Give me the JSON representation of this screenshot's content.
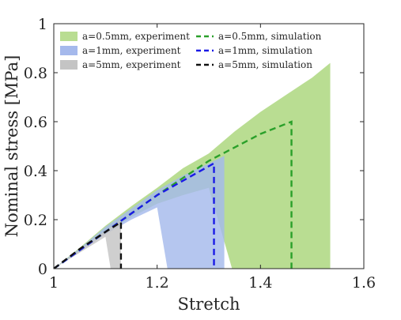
{
  "chart_data": {
    "type": "area",
    "title": "",
    "xlabel": "Stretch",
    "ylabel": "Nominal stress [MPa]",
    "xlim": [
      1,
      1.6
    ],
    "ylim": [
      0,
      1
    ],
    "xticks": [
      "1",
      "1.2",
      "1.4",
      "1.6"
    ],
    "yticks": [
      "0",
      "0.2",
      "0.4",
      "0.6",
      "0.8",
      "1"
    ],
    "grid": false,
    "legend_position": "top-left",
    "series": [
      {
        "name": "a=0.5mm, experiment",
        "kind": "band",
        "color": "#b9dd92",
        "x": [
          1.0,
          1.05,
          1.1,
          1.15,
          1.2,
          1.25,
          1.3,
          1.35,
          1.4,
          1.45,
          1.5,
          1.535
        ],
        "upper": [
          0,
          0.085,
          0.175,
          0.255,
          0.33,
          0.41,
          0.47,
          0.56,
          0.64,
          0.71,
          0.78,
          0.84
        ],
        "lower": [
          0,
          0.075,
          0.148,
          0.21,
          0.265,
          0.3,
          0.33,
          0.37,
          0.42,
          0.49,
          0.56,
          0.6
        ],
        "drop_x": [
          1.345,
          1.535
        ]
      },
      {
        "name": "a=1mm, experiment",
        "kind": "band",
        "color": "#a5b9ec",
        "x": [
          1.0,
          1.05,
          1.1,
          1.15,
          1.2,
          1.25,
          1.3,
          1.33
        ],
        "upper": [
          0,
          0.082,
          0.17,
          0.245,
          0.32,
          0.38,
          0.43,
          0.46
        ],
        "lower": [
          0,
          0.07,
          0.14,
          0.2,
          0.25,
          0.28,
          0.32,
          0.34
        ],
        "drop_x": [
          1.22,
          1.33
        ]
      },
      {
        "name": "a=5mm, experiment",
        "kind": "band",
        "color": "#c4c4c4",
        "x": [
          1.0,
          1.05,
          1.1,
          1.13
        ],
        "upper": [
          0,
          0.075,
          0.155,
          0.2
        ],
        "lower": [
          0,
          0.065,
          0.13,
          0.17
        ],
        "drop_x": [
          1.11,
          1.13
        ]
      },
      {
        "name": "a=0.5mm, simulation",
        "kind": "line",
        "color": "#2aa02a",
        "x": [
          1.0,
          1.1,
          1.2,
          1.3,
          1.4,
          1.46,
          1.46
        ],
        "y": [
          0,
          0.15,
          0.3,
          0.44,
          0.55,
          0.6,
          0
        ]
      },
      {
        "name": "a=1mm, simulation",
        "kind": "line",
        "color": "#1a1ae6",
        "x": [
          1.0,
          1.1,
          1.2,
          1.31,
          1.31
        ],
        "y": [
          0,
          0.15,
          0.3,
          0.43,
          0
        ]
      },
      {
        "name": "a=5mm, simulation",
        "kind": "line",
        "color": "#111111",
        "x": [
          1.0,
          1.05,
          1.1,
          1.13,
          1.13
        ],
        "y": [
          0,
          0.08,
          0.15,
          0.19,
          0
        ]
      }
    ],
    "legend": [
      {
        "label": "a=0.5mm, experiment",
        "kind": "patch",
        "color": "#b9dd92"
      },
      {
        "label": "a=1mm, experiment",
        "kind": "patch",
        "color": "#a5b9ec"
      },
      {
        "label": "a=5mm, experiment",
        "kind": "patch",
        "color": "#c4c4c4"
      },
      {
        "label": "a=0.5mm, simulation",
        "kind": "dash",
        "color": "#2aa02a"
      },
      {
        "label": "a=1mm, simulation",
        "kind": "dash",
        "color": "#1a1ae6"
      },
      {
        "label": "a=5mm, simulation",
        "kind": "dash",
        "color": "#111111"
      }
    ]
  }
}
